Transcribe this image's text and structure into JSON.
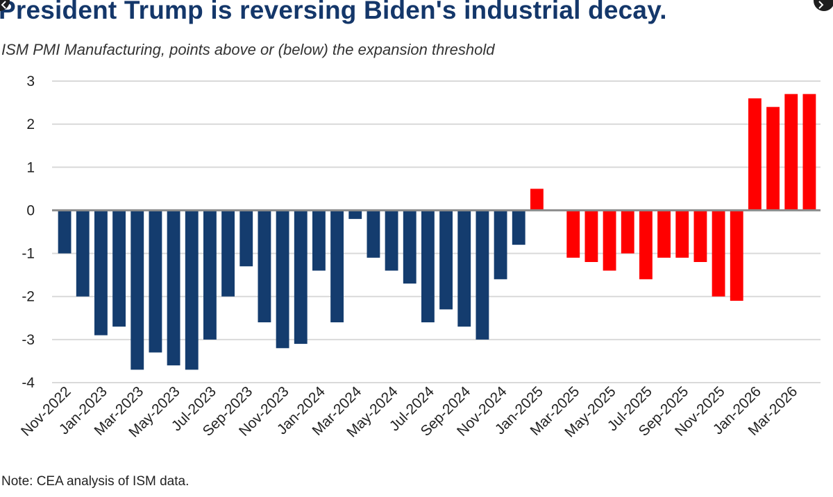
{
  "title": "President Trump is reversing Biden's industrial decay.",
  "subtitle": "ISM PMI Manufacturing, points above or (below) the expansion threshold",
  "note": "Note: CEA analysis of ISM data.",
  "controls": {
    "left_icon": "chevron-left-icon",
    "right_icon": "chevron-right-icon"
  },
  "colors": {
    "biden": "#143c6e",
    "trump": "#ff0000",
    "grid": "#d9d9d9",
    "zero_line": "#8c8c8c"
  },
  "chart_data": {
    "type": "bar",
    "title": "President Trump is reversing Biden's industrial decay.",
    "subtitle": "ISM PMI Manufacturing, points above or (below) the expansion threshold",
    "xlabel": "",
    "ylabel": "",
    "ylim": [
      -4,
      3
    ],
    "yticks": [
      "3",
      "2",
      "1",
      "0",
      "-1",
      "-2",
      "-3",
      "-4"
    ],
    "grid": true,
    "legend": "none",
    "x_tick_labels": [
      "Nov-2022",
      "Jan-2023",
      "Mar-2023",
      "May-2023",
      "Jul-2023",
      "Sep-2023",
      "Nov-2023",
      "Jan-2024",
      "Mar-2024",
      "May-2024",
      "Jul-2024",
      "Sep-2024",
      "Nov-2024",
      "Jan-2025",
      "Mar-2025",
      "May-2025",
      "Jul-2025",
      "Sep-2025",
      "Nov-2025",
      "Jan-2026",
      "Mar-2026"
    ],
    "categories": [
      "Nov-2022",
      "Dec-2022",
      "Jan-2023",
      "Feb-2023",
      "Mar-2023",
      "Apr-2023",
      "May-2023",
      "Jun-2023",
      "Jul-2023",
      "Aug-2023",
      "Sep-2023",
      "Oct-2023",
      "Nov-2023",
      "Dec-2023",
      "Jan-2024",
      "Feb-2024",
      "Mar-2024",
      "Apr-2024",
      "May-2024",
      "Jun-2024",
      "Jul-2024",
      "Aug-2024",
      "Sep-2024",
      "Oct-2024",
      "Nov-2024",
      "Dec-2024",
      "Jan-2025",
      "Feb-2025",
      "Mar-2025",
      "Apr-2025",
      "May-2025",
      "Jun-2025",
      "Jul-2025",
      "Aug-2025",
      "Sep-2025",
      "Oct-2025",
      "Nov-2025",
      "Dec-2025",
      "Jan-2026",
      "Feb-2026",
      "Mar-2026",
      "Apr-2026"
    ],
    "values": [
      -1.0,
      -2.0,
      -2.9,
      -2.7,
      -3.7,
      -3.3,
      -3.6,
      -3.7,
      -3.0,
      -2.0,
      -1.3,
      -2.6,
      -3.2,
      -3.1,
      -1.4,
      -2.6,
      -0.2,
      -1.1,
      -1.4,
      -1.7,
      -2.6,
      -2.3,
      -2.7,
      -3.0,
      -1.6,
      -0.8,
      0.5,
      null,
      -1.1,
      -1.2,
      -1.4,
      -1.0,
      -1.6,
      -1.1,
      -1.1,
      -1.2,
      -2.0,
      -2.1,
      2.6,
      2.4,
      2.7,
      2.7
    ],
    "bar_colors": [
      "#143c6e",
      "#143c6e",
      "#143c6e",
      "#143c6e",
      "#143c6e",
      "#143c6e",
      "#143c6e",
      "#143c6e",
      "#143c6e",
      "#143c6e",
      "#143c6e",
      "#143c6e",
      "#143c6e",
      "#143c6e",
      "#143c6e",
      "#143c6e",
      "#143c6e",
      "#143c6e",
      "#143c6e",
      "#143c6e",
      "#143c6e",
      "#143c6e",
      "#143c6e",
      "#143c6e",
      "#143c6e",
      "#143c6e",
      "#ff0000",
      "#ff0000",
      "#ff0000",
      "#ff0000",
      "#ff0000",
      "#ff0000",
      "#ff0000",
      "#ff0000",
      "#ff0000",
      "#ff0000",
      "#ff0000",
      "#ff0000",
      "#ff0000",
      "#ff0000",
      "#ff0000",
      "#ff0000"
    ]
  }
}
